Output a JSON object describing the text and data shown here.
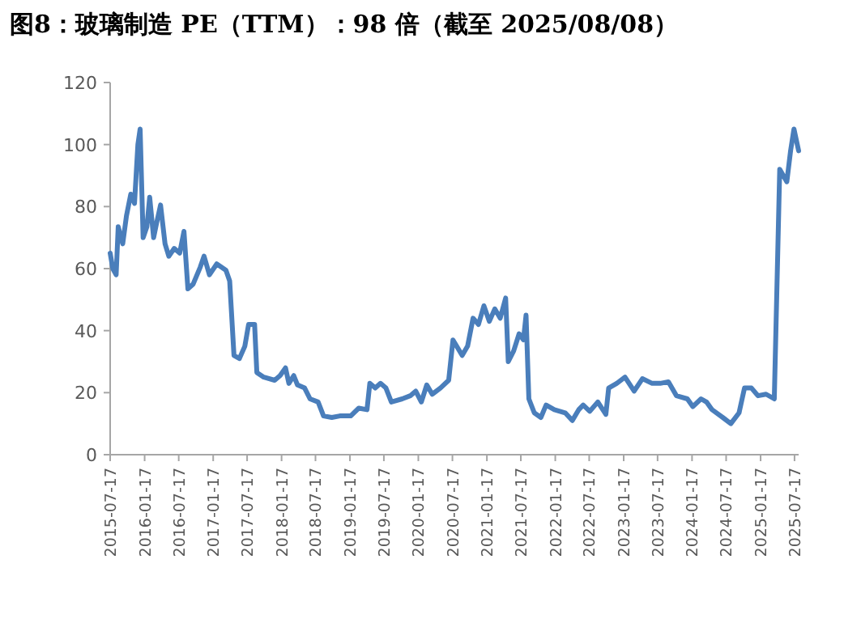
{
  "chart_data": {
    "type": "line",
    "title": "图8：玻璃制造 PE（TTM）：98 倍（截至 2025/08/08）",
    "x": [
      "2015-07-17",
      "2015-07-31",
      "2015-08-18",
      "2015-08-29",
      "2015-09-22",
      "2015-10-12",
      "2015-11-04",
      "2015-11-24",
      "2015-12-12",
      "2015-12-24",
      "2016-01-09",
      "2016-01-29",
      "2016-02-13",
      "2016-03-05",
      "2016-03-22",
      "2016-04-11",
      "2016-05-05",
      "2016-05-25",
      "2016-06-23",
      "2016-07-22",
      "2016-08-14",
      "2016-09-04",
      "2016-10-02",
      "2016-11-09",
      "2016-11-29",
      "2016-12-28",
      "2017-02-05",
      "2017-03-26",
      "2017-04-15",
      "2017-05-08",
      "2017-06-06",
      "2017-07-05",
      "2017-07-25",
      "2017-08-26",
      "2017-09-07",
      "2017-10-14",
      "2017-12-11",
      "2018-01-09",
      "2018-02-07",
      "2018-02-25",
      "2018-03-23",
      "2018-04-12",
      "2018-05-20",
      "2018-06-18",
      "2018-07-31",
      "2018-08-29",
      "2018-10-12",
      "2018-11-24",
      "2019-01-21",
      "2019-03-05",
      "2019-04-18",
      "2019-05-03",
      "2019-06-01",
      "2019-06-29",
      "2019-07-28",
      "2019-08-26",
      "2019-10-23",
      "2019-12-05",
      "2020-01-03",
      "2020-02-02",
      "2020-03-02",
      "2020-03-31",
      "2020-05-14",
      "2020-06-27",
      "2020-07-20",
      "2020-09-07",
      "2020-10-06",
      "2020-11-04",
      "2020-12-03",
      "2021-01-01",
      "2021-01-30",
      "2021-02-28",
      "2021-03-29",
      "2021-04-27",
      "2021-05-11",
      "2021-06-09",
      "2021-07-08",
      "2021-07-31",
      "2021-08-14",
      "2021-08-29",
      "2021-09-27",
      "2021-11-01",
      "2021-11-29",
      "2022-01-12",
      "2022-03-11",
      "2022-04-18",
      "2022-05-22",
      "2022-06-15",
      "2022-07-20",
      "2022-09-01",
      "2022-10-14",
      "2022-10-29",
      "2022-12-11",
      "2023-01-24",
      "2023-03-14",
      "2023-04-27",
      "2023-06-18",
      "2023-07-31",
      "2023-09-13",
      "2023-10-26",
      "2023-12-23",
      "2024-01-21",
      "2024-03-05",
      "2024-04-03",
      "2024-05-03",
      "2024-06-29",
      "2024-08-11",
      "2024-09-24",
      "2024-10-23",
      "2024-11-29",
      "2025-01-03",
      "2025-02-15",
      "2025-03-31",
      "2025-04-29",
      "2025-06-06",
      "2025-06-26",
      "2025-07-14",
      "2025-08-08"
    ],
    "series": [
      {
        "color": "#4a7ebb",
        "values": [
          65,
          60,
          58,
          73.5,
          68,
          77,
          84,
          81,
          100,
          105,
          70,
          73.5,
          83,
          70,
          75,
          80.5,
          68,
          64,
          66.5,
          65,
          72,
          53.5,
          55,
          60.5,
          64,
          58,
          61.5,
          59.5,
          56,
          32,
          31,
          35,
          42,
          42,
          26.5,
          25,
          24,
          25.5,
          28,
          23,
          25.5,
          22.5,
          21.5,
          18,
          17,
          12.5,
          12,
          12.5,
          12.5,
          15,
          14.5,
          23,
          21.5,
          23,
          21.5,
          17,
          18,
          19,
          20.5,
          17,
          22.5,
          19.5,
          21.5,
          24,
          37,
          32,
          35,
          44,
          42,
          48,
          43,
          47,
          44,
          50.5,
          30,
          33.5,
          39,
          37,
          45,
          18,
          13.5,
          12,
          16,
          14.5,
          13.5,
          11,
          14.5,
          16,
          14,
          17,
          13,
          21.5,
          23,
          25,
          20.5,
          24.5,
          23,
          23,
          23.5,
          19,
          18,
          15.5,
          18,
          17,
          14.5,
          12,
          10,
          13.5,
          21.5,
          21.5,
          19,
          19.5,
          18,
          92,
          88,
          98,
          105,
          98
        ]
      }
    ],
    "xlim": [
      "2015-07-17",
      "2025-08-08"
    ],
    "xticks": [
      "2015-07-17",
      "2016-01-17",
      "2016-07-17",
      "2017-01-17",
      "2017-07-17",
      "2018-01-17",
      "2018-07-17",
      "2019-01-17",
      "2019-07-17",
      "2020-01-17",
      "2020-07-17",
      "2021-01-17",
      "2021-07-17",
      "2022-01-17",
      "2022-07-17",
      "2023-01-17",
      "2023-07-17",
      "2024-01-17",
      "2024-07-17",
      "2025-01-17",
      "2025-07-17"
    ],
    "ylim": [
      0,
      120
    ],
    "yticks": [
      0,
      20,
      40,
      60,
      80,
      100,
      120
    ],
    "grid": false,
    "marker": "none",
    "line_style": "solid"
  }
}
